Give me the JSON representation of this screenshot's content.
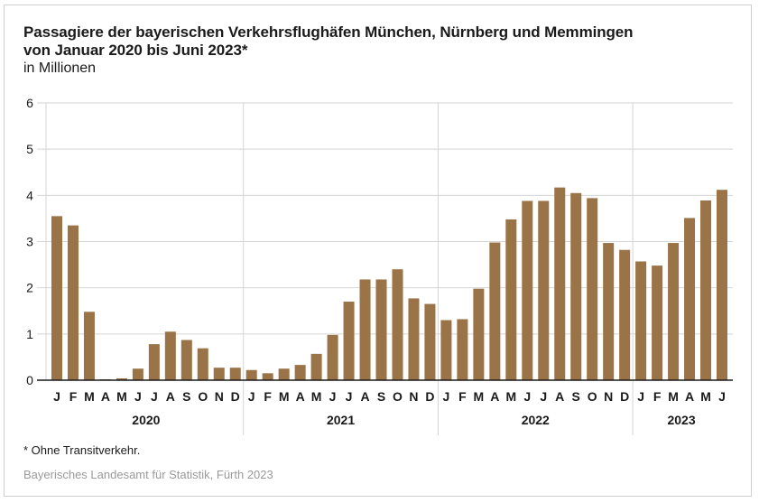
{
  "chart_data": {
    "type": "bar",
    "title_line1": "Passagiere der bayerischen Verkehrsflughäfen München, Nürnberg und Memmingen",
    "title_line2": "von Januar 2020 bis Juni 2023*",
    "subtitle": "in Millionen",
    "xlabel": "",
    "ylabel": "in Millionen",
    "ylim": [
      0,
      6
    ],
    "yticks": [
      "0",
      "1",
      "2",
      "3",
      "4",
      "5",
      "6"
    ],
    "grid": true,
    "bar_color": "#9a7347",
    "years": [
      {
        "label": "2020",
        "months": 12
      },
      {
        "label": "2021",
        "months": 12
      },
      {
        "label": "2022",
        "months": 12
      },
      {
        "label": "2023",
        "months": 6
      }
    ],
    "categories": [
      "J",
      "F",
      "M",
      "A",
      "M",
      "J",
      "J",
      "A",
      "S",
      "O",
      "N",
      "D",
      "J",
      "F",
      "M",
      "A",
      "M",
      "J",
      "J",
      "A",
      "S",
      "O",
      "N",
      "D",
      "J",
      "F",
      "M",
      "A",
      "M",
      "J",
      "J",
      "A",
      "S",
      "O",
      "N",
      "D",
      "J",
      "F",
      "M",
      "A",
      "M",
      "J"
    ],
    "values": [
      3.55,
      3.35,
      1.48,
      0.02,
      0.04,
      0.25,
      0.78,
      1.05,
      0.87,
      0.69,
      0.27,
      0.27,
      0.22,
      0.15,
      0.25,
      0.33,
      0.57,
      0.98,
      1.7,
      2.18,
      2.18,
      2.4,
      1.77,
      1.65,
      1.3,
      1.32,
      1.98,
      2.98,
      3.48,
      3.88,
      3.88,
      4.17,
      4.05,
      3.94,
      2.97,
      2.82,
      2.57,
      2.48,
      2.97,
      3.51,
      3.89,
      4.12
    ]
  },
  "footnote": "* Ohne Transitverkehr.",
  "source": "Bayerisches Landesamt für Statistik, Fürth 2023"
}
